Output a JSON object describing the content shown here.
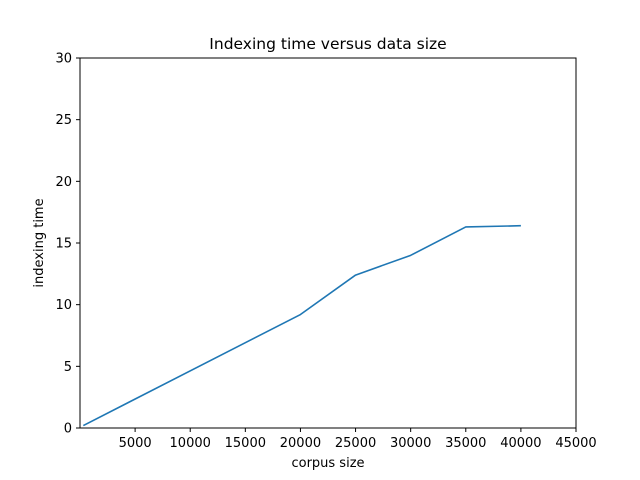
{
  "chart_data": {
    "type": "line",
    "title": "Indexing time versus data size",
    "xlabel": "corpus size",
    "ylabel": "indexing time",
    "xlim": [
      0,
      45000
    ],
    "ylim": [
      0,
      30
    ],
    "xticks": [
      5000,
      10000,
      15000,
      20000,
      25000,
      30000,
      35000,
      40000,
      45000
    ],
    "yticks": [
      0,
      5,
      10,
      15,
      20,
      25,
      30
    ],
    "grid": false,
    "series": [
      {
        "color": "#1f77b4",
        "x": [
          300,
          20000,
          25000,
          30000,
          35000,
          40000
        ],
        "y": [
          0.2,
          9.2,
          12.4,
          14.0,
          16.3,
          16.4
        ]
      }
    ]
  }
}
